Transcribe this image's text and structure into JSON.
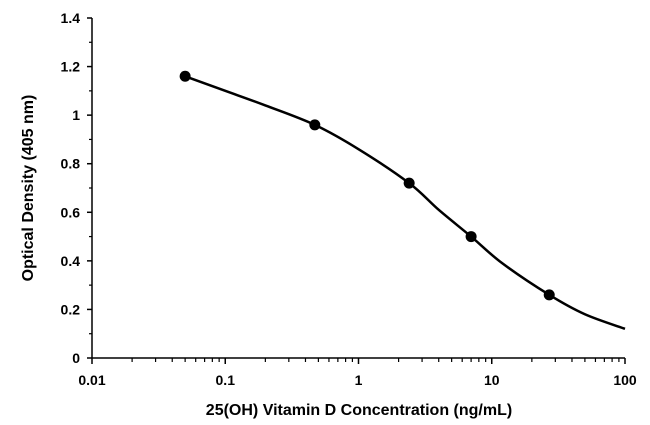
{
  "chart_data": {
    "type": "line",
    "title": "",
    "xlabel": "25(OH) Vitamin D Concentration (ng/mL)",
    "ylabel": "Optical Density (405 nm)",
    "x_scale": "log",
    "xlim": [
      0.01,
      100
    ],
    "ylim": [
      0,
      1.4
    ],
    "x_ticks": [
      "0.01",
      "0.1",
      "1",
      "10",
      "100"
    ],
    "y_ticks": [
      "0",
      "0.2",
      "0.4",
      "0.6",
      "0.8",
      "1",
      "1.2",
      "1.4"
    ],
    "grid": false,
    "legend": "none",
    "series": [
      {
        "points": [
          {
            "x": 0.05,
            "y": 1.16
          },
          {
            "x": 0.47,
            "y": 0.96
          },
          {
            "x": 2.4,
            "y": 0.72
          },
          {
            "x": 7,
            "y": 0.5
          },
          {
            "x": 27,
            "y": 0.26
          }
        ],
        "fit_curve": [
          {
            "x": 0.05,
            "y": 1.16
          },
          {
            "x": 0.1,
            "y": 1.1
          },
          {
            "x": 0.2,
            "y": 1.04
          },
          {
            "x": 0.47,
            "y": 0.96
          },
          {
            "x": 1,
            "y": 0.86
          },
          {
            "x": 2.4,
            "y": 0.72
          },
          {
            "x": 4,
            "y": 0.61
          },
          {
            "x": 7,
            "y": 0.5
          },
          {
            "x": 12,
            "y": 0.39
          },
          {
            "x": 27,
            "y": 0.26
          },
          {
            "x": 50,
            "y": 0.18
          },
          {
            "x": 100,
            "y": 0.12
          }
        ],
        "color": "#000000"
      }
    ]
  }
}
